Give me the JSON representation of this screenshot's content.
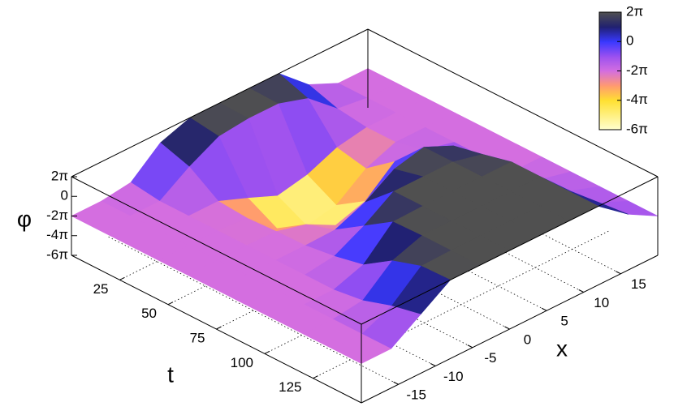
{
  "chart_data": {
    "type": "surface3d",
    "xlabel": "x",
    "ylabel": "t",
    "zlabel": "φ",
    "x": [
      -20,
      -16,
      -12,
      -8,
      -4,
      0,
      4,
      8,
      12,
      16,
      20
    ],
    "y": [
      0,
      15,
      30,
      45,
      60,
      75,
      90,
      105,
      120,
      135,
      150
    ],
    "z": [
      [
        -6.28,
        -6.28,
        -5.0,
        3.0,
        6.28,
        6.28,
        6.28,
        6.28,
        -2.0,
        -6.28,
        -6.28
      ],
      [
        -6.28,
        -6.28,
        -6.28,
        0.0,
        5.0,
        6.0,
        6.0,
        3.0,
        -5.0,
        -6.28,
        -6.28
      ],
      [
        -6.28,
        -6.28,
        -6.28,
        -6.28,
        -10.0,
        -14.0,
        -12.0,
        -8.0,
        -6.28,
        -6.28,
        -6.28
      ],
      [
        -6.28,
        -6.28,
        -6.28,
        -7.0,
        -15.0,
        -18.8,
        -17.0,
        -10.0,
        -6.28,
        -6.28,
        -6.28
      ],
      [
        -6.28,
        -6.28,
        -6.28,
        -6.5,
        -9.0,
        -14.0,
        -11.0,
        -3.0,
        -4.0,
        -6.28,
        -6.28
      ],
      [
        -6.28,
        -6.28,
        -6.28,
        -6.28,
        -6.0,
        -2.0,
        4.0,
        6.28,
        2.0,
        -6.28,
        -6.28
      ],
      [
        -6.28,
        -6.28,
        -6.28,
        -5.0,
        0.0,
        6.28,
        6.28,
        6.28,
        4.0,
        -6.28,
        -6.28
      ],
      [
        -6.28,
        -6.28,
        -6.28,
        -3.0,
        6.0,
        6.28,
        6.28,
        6.28,
        6.28,
        -4.0,
        -6.28
      ],
      [
        -6.28,
        -6.28,
        -5.0,
        3.0,
        6.28,
        6.28,
        6.28,
        6.28,
        6.28,
        -3.0,
        -6.28
      ],
      [
        -6.28,
        -6.28,
        -2.0,
        6.0,
        6.28,
        6.28,
        6.28,
        6.28,
        6.28,
        -2.0,
        -6.28
      ],
      [
        -6.28,
        -6.28,
        0.0,
        6.28,
        6.28,
        6.28,
        6.28,
        6.28,
        6.28,
        -1.0,
        -6.28
      ]
    ],
    "xlim": [
      -20,
      20
    ],
    "ylim": [
      0,
      150
    ],
    "zlim": [
      -18.85,
      6.283
    ],
    "xticks": [
      -15,
      -10,
      -5,
      0,
      5,
      10,
      15
    ],
    "yticks": [
      25,
      50,
      75,
      100,
      125
    ],
    "zticks": [
      {
        "value": 6.283,
        "label": "2π"
      },
      {
        "value": 0,
        "label": "0"
      },
      {
        "value": -6.283,
        "label": "-2π"
      },
      {
        "value": -12.566,
        "label": "-4π"
      },
      {
        "value": -18.85,
        "label": "-6π"
      }
    ],
    "grid": true,
    "colorbar": {
      "ticks": [
        {
          "value": 6.283,
          "label": "2π"
        },
        {
          "value": 0,
          "label": "0"
        },
        {
          "value": -6.283,
          "label": "-2π"
        },
        {
          "value": -12.566,
          "label": "-4π"
        },
        {
          "value": -18.85,
          "label": "-6π"
        }
      ],
      "palette": [
        {
          "value": -18.85,
          "color": "#ffffd0"
        },
        {
          "value": -12.566,
          "color": "#ffe030"
        },
        {
          "value": -9.425,
          "color": "#ff9a70"
        },
        {
          "value": -6.283,
          "color": "#d46ee0"
        },
        {
          "value": -3.142,
          "color": "#9a50f0"
        },
        {
          "value": 0,
          "color": "#3838ff"
        },
        {
          "value": 3.142,
          "color": "#202070"
        },
        {
          "value": 6.283,
          "color": "#505050"
        }
      ]
    }
  }
}
